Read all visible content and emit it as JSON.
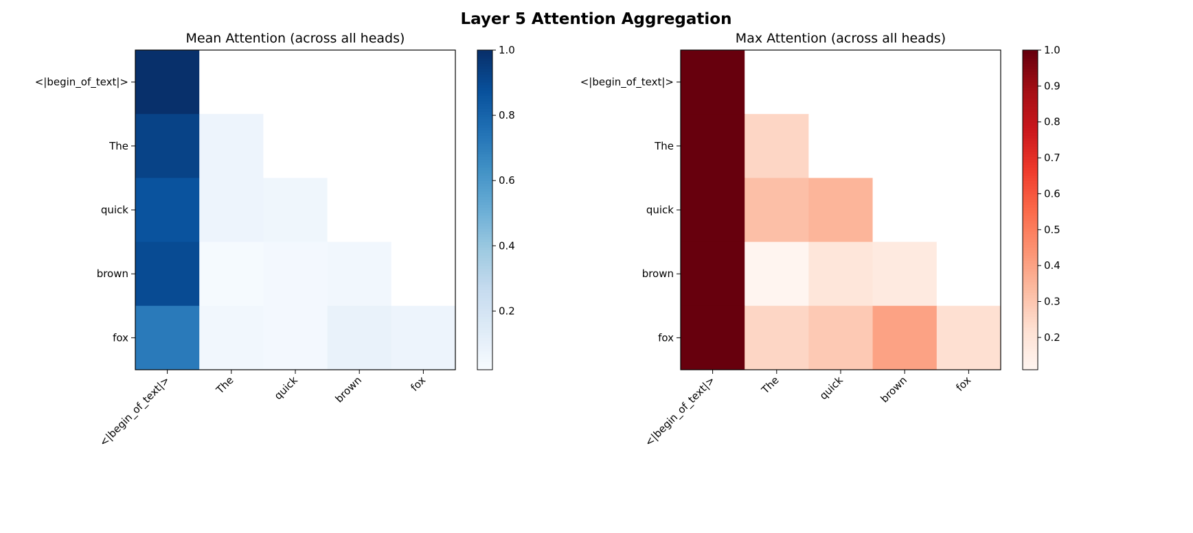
{
  "chart_data": {
    "title": "Layer 5 Attention Aggregation",
    "charts": [
      {
        "type": "heatmap",
        "title": "Mean Attention (across all heads)",
        "x_tick_labels": [
          "<|begin_of_text|>",
          "The",
          "quick",
          "brown",
          "fox"
        ],
        "y_tick_labels": [
          "<|begin_of_text|>",
          "The",
          "quick",
          "brown",
          "fox"
        ],
        "colormap": "Blues",
        "color_range": [
          0.02,
          1.0
        ],
        "colorbar_ticks": [
          "0.2",
          "0.4",
          "0.6",
          "0.8",
          "1.0"
        ],
        "values": [
          [
            1.0,
            null,
            null,
            null,
            null
          ],
          [
            0.93,
            0.07,
            null,
            null,
            null
          ],
          [
            0.87,
            0.07,
            0.06,
            null,
            null
          ],
          [
            0.9,
            0.03,
            0.04,
            0.05,
            null
          ],
          [
            0.72,
            0.05,
            0.04,
            0.09,
            0.07
          ]
        ]
      },
      {
        "type": "heatmap",
        "title": "Max Attention (across all heads)",
        "x_tick_labels": [
          "<|begin_of_text|>",
          "The",
          "quick",
          "brown",
          "fox"
        ],
        "y_tick_labels": [
          "<|begin_of_text|>",
          "The",
          "quick",
          "brown",
          "fox"
        ],
        "colormap": "Reds",
        "color_range": [
          0.11,
          1.0
        ],
        "colorbar_ticks": [
          "0.2",
          "0.3",
          "0.4",
          "0.5",
          "0.6",
          "0.7",
          "0.8",
          "0.9",
          "1.0"
        ],
        "values": [
          [
            1.0,
            null,
            null,
            null,
            null
          ],
          [
            1.0,
            0.25,
            null,
            null,
            null
          ],
          [
            1.0,
            0.32,
            0.35,
            null,
            null
          ],
          [
            1.0,
            0.11,
            0.19,
            0.17,
            null
          ],
          [
            1.0,
            0.25,
            0.29,
            0.4,
            0.22
          ]
        ]
      }
    ]
  }
}
